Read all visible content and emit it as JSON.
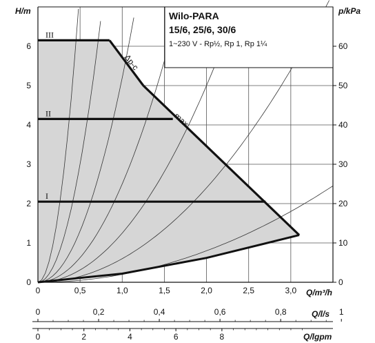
{
  "chart_data": {
    "type": "line",
    "title": "Wilo-PARA",
    "subtitle": "15/6, 25/6, 30/6",
    "supply": "1~230 V - Rp½, Rp 1, Rp 1¼",
    "y_left_label": "H/m",
    "y_right_label": "p/kPa",
    "x_label": "Q/m³/h",
    "x2_label": "Q/l/s",
    "x3_label": "Q/lgpm",
    "xlim": [
      0,
      3.5
    ],
    "ylim": [
      0,
      7
    ],
    "y_right_lim": [
      0,
      70
    ],
    "x_ticks": [
      "0",
      "0,5",
      "1,0",
      "1,5",
      "2,0",
      "2,5",
      "3,0"
    ],
    "x_tick_values": [
      0,
      0.5,
      1.0,
      1.5,
      2.0,
      2.5,
      3.0
    ],
    "y_ticks": [
      "0",
      "1",
      "2",
      "3",
      "4",
      "5",
      "6"
    ],
    "y_tick_values": [
      0,
      1,
      2,
      3,
      4,
      5,
      6
    ],
    "y_right_ticks": [
      "0",
      "10",
      "20",
      "30",
      "40",
      "50",
      "60"
    ],
    "y_right_tick_values": [
      0,
      10,
      20,
      30,
      40,
      50,
      60
    ],
    "x2_ticks": [
      "0",
      "0,2",
      "0,4",
      "0,6",
      "0,8",
      "1"
    ],
    "x2_tick_values": [
      0,
      0.2,
      0.4,
      0.6,
      0.8,
      1.0
    ],
    "x3_ticks": [
      "0",
      "2",
      "4",
      "6",
      "8"
    ],
    "x3_tick_values": [
      0,
      2,
      4,
      6,
      8
    ],
    "grid": true,
    "series": [
      {
        "name": "III",
        "points": [
          [
            0,
            6.15
          ],
          [
            0.85,
            6.15
          ]
        ]
      },
      {
        "name": "II",
        "points": [
          [
            0,
            4.15
          ],
          [
            1.6,
            4.15
          ]
        ]
      },
      {
        "name": "I",
        "points": [
          [
            0,
            2.05
          ],
          [
            2.7,
            2.05
          ]
        ]
      },
      {
        "name": "Δp-c",
        "points": [
          [
            0.85,
            6.15
          ],
          [
            1.25,
            5.0
          ]
        ]
      },
      {
        "name": "max",
        "points": [
          [
            1.25,
            5.0
          ],
          [
            3.1,
            1.2
          ]
        ]
      }
    ],
    "min_curve": [
      [
        0,
        0
      ],
      [
        1.0,
        0.22
      ],
      [
        2.0,
        0.62
      ],
      [
        3.1,
        1.2
      ]
    ],
    "system_curves": [
      {
        "k": 30.0
      },
      {
        "k": 12.0
      },
      {
        "k": 5.2
      },
      {
        "k": 2.5
      },
      {
        "k": 1.25
      },
      {
        "k": 0.6
      },
      {
        "k": 0.2
      }
    ]
  }
}
